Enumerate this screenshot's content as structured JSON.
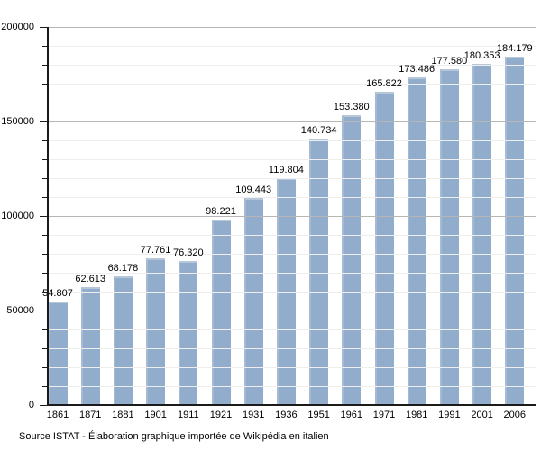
{
  "chart_data": {
    "type": "bar",
    "title": "",
    "xlabel": "",
    "ylabel": "",
    "categories": [
      "1861",
      "1871",
      "1881",
      "1901",
      "1911",
      "1921",
      "1931",
      "1936",
      "1951",
      "1961",
      "1971",
      "1981",
      "1991",
      "2001",
      "2006"
    ],
    "values": [
      54807,
      62613,
      68178,
      77761,
      76320,
      98221,
      109443,
      119804,
      140734,
      153380,
      165822,
      173486,
      177580,
      180353,
      184179
    ],
    "value_labels": [
      "54.807",
      "62.613",
      "68.178",
      "77.761",
      "76.320",
      "98.221",
      "109.443",
      "119.804",
      "140.734",
      "153.380",
      "165.822",
      "173.486",
      "177.580",
      "180.353",
      "184.179"
    ],
    "ylim": [
      0,
      200000
    ],
    "y_major_step": 50000,
    "y_minor_step": 10000,
    "y_tick_labels": [
      "0",
      "50000",
      "100000",
      "150000",
      "200000"
    ],
    "grid": "horizontal, minor + major, drawn over bars",
    "legend": "none",
    "bar_color": "#92accb",
    "bar_highlight_color": "#b7c7da",
    "major_grid_color": "#b6b6b6",
    "minor_grid_color": "#eeeeee"
  },
  "footer": {
    "source_text": "Source ISTAT -  Élaboration graphique importée de Wikipédia en italien"
  }
}
